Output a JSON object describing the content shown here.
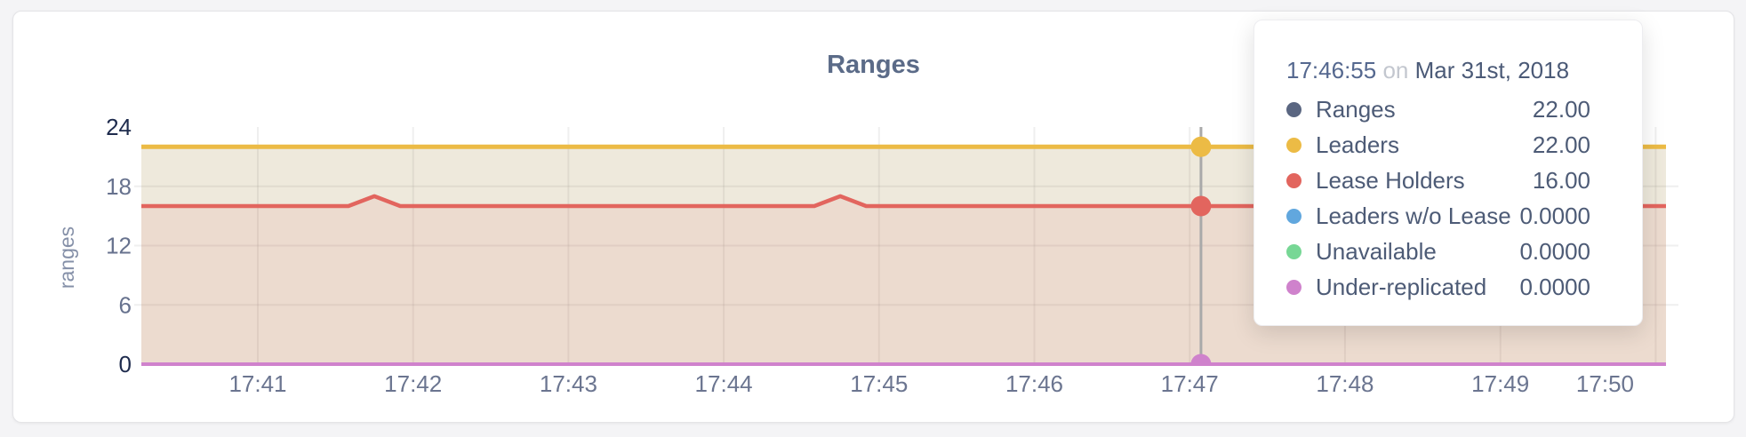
{
  "card": {
    "title": "Ranges"
  },
  "chart_data": {
    "type": "area",
    "title": "Ranges",
    "xlabel": "",
    "ylabel": "ranges",
    "ylim": [
      0,
      24
    ],
    "grid": true,
    "legend_position": "hover-tooltip",
    "y_ticks": [
      0,
      6,
      12,
      18,
      24
    ],
    "y_gridlines": [
      6,
      12,
      18
    ],
    "x_start": "17:40:15",
    "x_end": "17:50:04",
    "x_ticks": [
      "17:41",
      "17:42",
      "17:43",
      "17:44",
      "17:45",
      "17:46",
      "17:47",
      "17:48",
      "17:49",
      "17:50"
    ],
    "series": [
      {
        "name": "Ranges",
        "color": "#5a6681",
        "fill": "rgba(90,102,129,0.10)",
        "width": 4,
        "points": [
          [
            "17:40:15",
            22
          ],
          [
            "17:50:04",
            22
          ]
        ]
      },
      {
        "name": "Leaders",
        "color": "#ecbb45",
        "fill": "rgba(236,187,69,0.12)",
        "width": 5,
        "points": [
          [
            "17:40:15",
            22
          ],
          [
            "17:50:04",
            22
          ]
        ]
      },
      {
        "name": "Lease Holders",
        "color": "#e2655e",
        "fill": "rgba(226,101,94,0.10)",
        "width": 4.5,
        "points": [
          [
            "17:40:15",
            16
          ],
          [
            "17:41:35",
            16
          ],
          [
            "17:41:45",
            17
          ],
          [
            "17:41:55",
            16
          ],
          [
            "17:44:35",
            16
          ],
          [
            "17:44:45",
            17
          ],
          [
            "17:44:55",
            16
          ],
          [
            "17:50:04",
            16
          ]
        ]
      },
      {
        "name": "Leaders w/o Lease",
        "color": "#61a7de",
        "fill": "rgba(97,167,222,0.10)",
        "width": 3.5,
        "points": [
          [
            "17:40:15",
            0
          ],
          [
            "17:50:04",
            0
          ]
        ]
      },
      {
        "name": "Unavailable",
        "color": "#77d795",
        "fill": "rgba(119,215,149,0.10)",
        "width": 3.5,
        "points": [
          [
            "17:40:15",
            0
          ],
          [
            "17:50:04",
            0
          ]
        ]
      },
      {
        "name": "Under-replicated",
        "color": "#cf82cc",
        "fill": "rgba(207,130,204,0.10)",
        "width": 4,
        "points": [
          [
            "17:40:15",
            0
          ],
          [
            "17:50:04",
            0
          ]
        ]
      }
    ],
    "hover": {
      "x_fraction": 0.695,
      "points": [
        {
          "series": "Leaders",
          "value": 22
        },
        {
          "series": "Lease Holders",
          "value": 16
        },
        {
          "series": "Under-replicated",
          "value": 0
        }
      ]
    }
  },
  "tooltip": {
    "time": "17:46:55",
    "conjunction": "on",
    "date": "Mar 31st, 2018",
    "rows": [
      {
        "label": "Ranges",
        "value": "22.00",
        "color": "#5a6681"
      },
      {
        "label": "Leaders",
        "value": "22.00",
        "color": "#ecbb45"
      },
      {
        "label": "Lease Holders",
        "value": "16.00",
        "color": "#e2655e"
      },
      {
        "label": "Leaders w/o Lease",
        "value": "0.0000",
        "color": "#61a7de"
      },
      {
        "label": "Unavailable",
        "value": "0.0000",
        "color": "#77d795"
      },
      {
        "label": "Under-replicated",
        "value": "0.0000",
        "color": "#cf82cc"
      }
    ]
  }
}
